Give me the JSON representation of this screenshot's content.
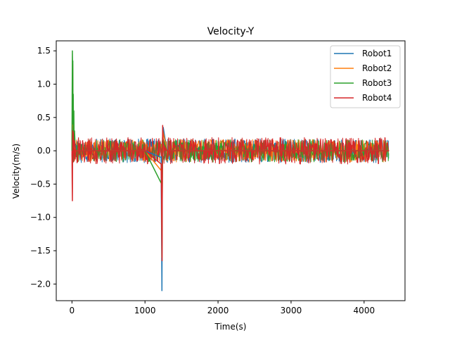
{
  "chart_data": {
    "type": "line",
    "title": "Velocity-Y",
    "xlabel": "Time(s)",
    "ylabel": "Velocity(m/s)",
    "xlim": [
      -215,
      4560
    ],
    "ylim": [
      -2.25,
      1.65
    ],
    "xticks": [
      0,
      1000,
      2000,
      3000,
      4000
    ],
    "yticks": [
      -2.0,
      -1.5,
      -1.0,
      -0.5,
      0.0,
      0.5,
      1.0,
      1.5
    ],
    "xtick_labels": [
      "0",
      "1000",
      "2000",
      "3000",
      "4000"
    ],
    "ytick_labels": [
      "−2.0",
      "−1.5",
      "−1.0",
      "−0.5",
      "0.0",
      "0.5",
      "1.0",
      "1.5"
    ],
    "grid": false,
    "legend_position": "top-right",
    "series": [
      {
        "name": "Robot1",
        "color": "#1f77b4",
        "noise_band": [
          -0.18,
          0.18
        ],
        "x": [
          0,
          5,
          10,
          15,
          20,
          25,
          30,
          40,
          50,
          60,
          1000,
          1220,
          1228,
          1232,
          1236,
          1240,
          1250,
          1300,
          2000,
          3000,
          4000,
          4340
        ],
        "y": [
          0.0,
          0.3,
          0.9,
          0.25,
          0.45,
          0.1,
          0.2,
          0.05,
          0.1,
          0.0,
          0.0,
          -0.1,
          -1.4,
          -2.1,
          -0.6,
          0.1,
          0.35,
          0.0,
          0.0,
          0.0,
          0.0,
          0.0
        ]
      },
      {
        "name": "Robot2",
        "color": "#ff7f0e",
        "noise_band": [
          -0.17,
          0.17
        ],
        "x": [
          0,
          5,
          10,
          15,
          20,
          30,
          50,
          1000,
          1225,
          1232,
          1238,
          1245,
          1300,
          4340
        ],
        "y": [
          0.0,
          0.6,
          1.3,
          0.5,
          0.3,
          0.1,
          0.0,
          0.0,
          -0.3,
          -1.6,
          -0.4,
          0.3,
          0.0,
          0.0
        ]
      },
      {
        "name": "Robot3",
        "color": "#2ca02c",
        "noise_band": [
          -0.17,
          0.17
        ],
        "x": [
          0,
          3,
          6,
          9,
          12,
          15,
          18,
          22,
          26,
          30,
          35,
          45,
          60,
          1000,
          1228,
          1234,
          1240,
          1300,
          4340
        ],
        "y": [
          0.0,
          0.9,
          1.5,
          1.2,
          1.35,
          0.4,
          0.85,
          0.2,
          0.6,
          0.1,
          0.3,
          0.05,
          0.0,
          0.0,
          -0.5,
          -1.2,
          0.2,
          0.0,
          0.0
        ]
      },
      {
        "name": "Robot4",
        "color": "#d62728",
        "noise_band": [
          -0.2,
          0.2
        ],
        "x": [
          0,
          3,
          6,
          10,
          14,
          18,
          25,
          35,
          50,
          1000,
          1222,
          1228,
          1234,
          1238,
          1242,
          1250,
          1300,
          4340
        ],
        "y": [
          0.0,
          -0.45,
          -0.75,
          0.3,
          0.1,
          0.28,
          0.05,
          0.15,
          0.0,
          0.0,
          -0.2,
          -0.9,
          -1.65,
          -0.2,
          0.38,
          0.1,
          0.0,
          0.0
        ]
      }
    ]
  }
}
